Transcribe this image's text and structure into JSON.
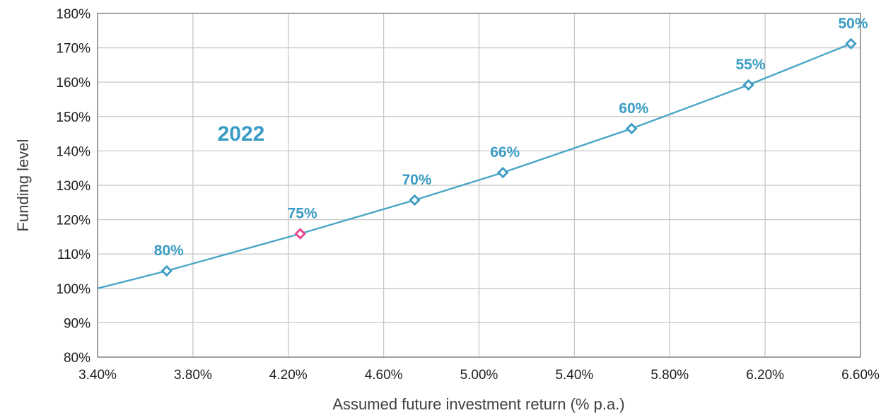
{
  "chart_data": {
    "type": "line",
    "title": "",
    "annotation": "2022",
    "xlabel": "Assumed future investment return (% p.a.)",
    "ylabel": "Funding level",
    "xlim": [
      3.4,
      6.6
    ],
    "ylim": [
      80,
      180
    ],
    "x_ticks": [
      3.4,
      3.8,
      4.2,
      4.6,
      5.0,
      5.4,
      5.8,
      6.2,
      6.6
    ],
    "x_tick_labels": [
      "3.40%",
      "3.80%",
      "4.20%",
      "4.60%",
      "5.00%",
      "5.40%",
      "5.80%",
      "6.20%",
      "6.60%"
    ],
    "y_ticks": [
      80,
      90,
      100,
      110,
      120,
      130,
      140,
      150,
      160,
      170,
      180
    ],
    "y_tick_labels": [
      "80%",
      "90%",
      "100%",
      "110%",
      "120%",
      "130%",
      "140%",
      "150%",
      "160%",
      "170%",
      "180%"
    ],
    "grid": true,
    "line": {
      "x": [
        3.4,
        3.69,
        4.25,
        4.73,
        5.1,
        5.64,
        6.13,
        6.56
      ],
      "y": [
        100,
        105.1,
        115.9,
        125.7,
        133.7,
        146.5,
        159.2,
        171.2
      ]
    },
    "points": [
      {
        "x": 3.69,
        "y": 105.1,
        "label": "80%",
        "highlight": false
      },
      {
        "x": 4.25,
        "y": 115.9,
        "label": "75%",
        "highlight": true
      },
      {
        "x": 4.73,
        "y": 125.7,
        "label": "70%",
        "highlight": false
      },
      {
        "x": 5.1,
        "y": 133.7,
        "label": "66%",
        "highlight": false
      },
      {
        "x": 5.64,
        "y": 146.5,
        "label": "60%",
        "highlight": false
      },
      {
        "x": 6.13,
        "y": 159.2,
        "label": "55%",
        "highlight": false
      },
      {
        "x": 6.56,
        "y": 171.2,
        "label": "50%",
        "highlight": false
      }
    ],
    "colors": {
      "line": "#4aa6c8",
      "marker": "#3a9cc4",
      "highlight_marker": "#e8418c",
      "label": "#3a9cc4",
      "annotation": "#3a9cc4",
      "grid": "#c8c8c8",
      "axis": "#7f7f7f"
    }
  }
}
